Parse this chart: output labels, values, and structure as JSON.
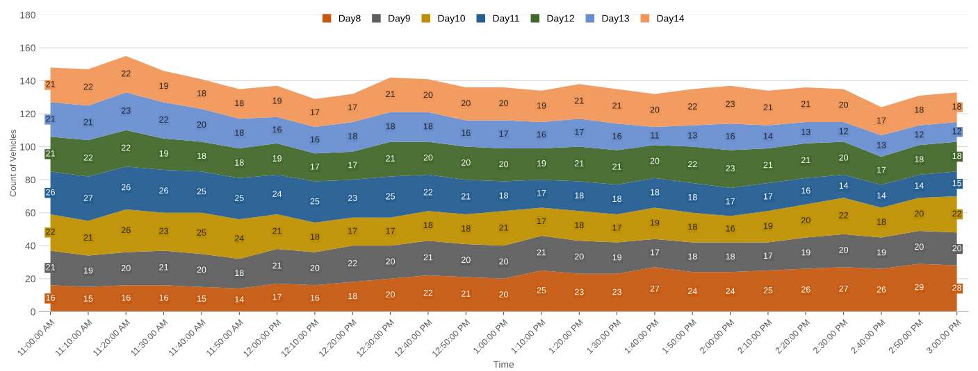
{
  "chart_data": {
    "type": "area",
    "stacked": true,
    "data_labels": true,
    "grid": "y",
    "legend": "top",
    "xlabel": "Time",
    "ylabel": "Count of Vehicles",
    "ylim": [
      0,
      180
    ],
    "yticks": [
      0,
      20,
      40,
      60,
      80,
      100,
      120,
      140,
      160,
      180
    ],
    "categories": [
      "11:00:00 AM",
      "11:10:00 AM",
      "11:20:00 AM",
      "11:30:00 AM",
      "11:40:00 AM",
      "11:50:00 AM",
      "12:00:00 PM",
      "12:10:00 PM",
      "12:20:00 PM",
      "12:30:00 PM",
      "12:40:00 PM",
      "12:50:00 PM",
      "1:00:00 PM",
      "1:10:00 PM",
      "1:20:00 PM",
      "1:30:00 PM",
      "1:40:00 PM",
      "1:50:00 PM",
      "2:00:00 PM",
      "2:10:00 PM",
      "2:20:00 PM",
      "2:30:00 PM",
      "2:40:00 PM",
      "2:50:00 PM",
      "3:00:00 PM"
    ],
    "series": [
      {
        "name": "Day8",
        "color": "#c55a11",
        "values": [
          16,
          15,
          16,
          16,
          15,
          14,
          17,
          16,
          18,
          20,
          22,
          21,
          20,
          25,
          23,
          23,
          27,
          24,
          24,
          25,
          26,
          27,
          26,
          29,
          28
        ]
      },
      {
        "name": "Day9",
        "color": "#5f5f5f",
        "values": [
          21,
          19,
          20,
          21,
          20,
          18,
          21,
          20,
          22,
          20,
          21,
          20,
          20,
          21,
          20,
          19,
          17,
          18,
          18,
          17,
          19,
          20,
          19,
          20,
          20
        ]
      },
      {
        "name": "Day10",
        "color": "#bf9000",
        "values": [
          22,
          21,
          26,
          23,
          25,
          24,
          21,
          18,
          17,
          17,
          18,
          18,
          21,
          17,
          18,
          17,
          19,
          18,
          16,
          19,
          20,
          22,
          18,
          20,
          22
        ]
      },
      {
        "name": "Day11",
        "color": "#255e91",
        "values": [
          26,
          27,
          26,
          26,
          25,
          25,
          24,
          25,
          23,
          25,
          22,
          21,
          18,
          17,
          18,
          18,
          18,
          18,
          17,
          17,
          16,
          14,
          14,
          14,
          15
        ]
      },
      {
        "name": "Day12",
        "color": "#43682b",
        "values": [
          21,
          22,
          22,
          19,
          18,
          18,
          19,
          17,
          17,
          21,
          20,
          20,
          20,
          19,
          21,
          21,
          20,
          22,
          23,
          21,
          21,
          20,
          17,
          18,
          18
        ]
      },
      {
        "name": "Day13",
        "color": "#698ed0",
        "values": [
          21,
          21,
          23,
          22,
          20,
          18,
          16,
          16,
          18,
          18,
          18,
          16,
          17,
          16,
          17,
          16,
          11,
          13,
          16,
          14,
          13,
          12,
          13,
          12,
          12
        ]
      },
      {
        "name": "Day14",
        "color": "#f1975a",
        "values": [
          21,
          22,
          22,
          19,
          18,
          18,
          19,
          17,
          17,
          21,
          20,
          20,
          20,
          19,
          21,
          21,
          20,
          22,
          23,
          21,
          21,
          20,
          17,
          18,
          18
        ]
      }
    ]
  }
}
